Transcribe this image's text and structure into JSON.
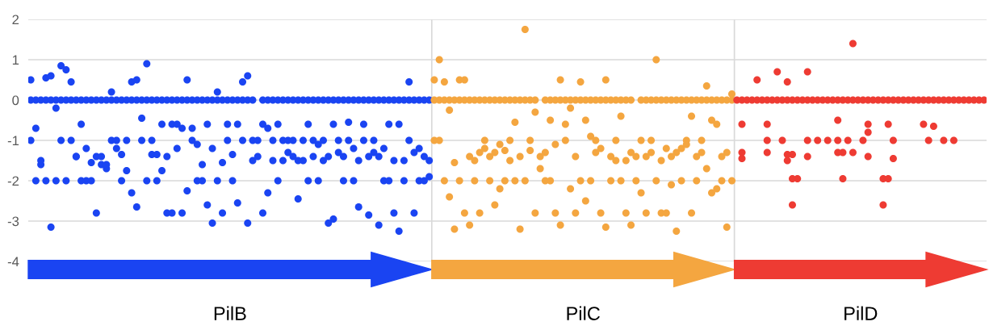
{
  "chart_data": {
    "type": "scatter",
    "annotations": [
      "PilB",
      "PilC",
      "PilD"
    ],
    "categories": [
      null,
      null,
      null,
      null,
      null,
      null,
      null,
      null,
      null,
      null,
      null,
      null,
      null,
      null,
      null,
      null,
      null,
      null,
      null,
      null,
      null,
      null,
      null,
      null,
      null,
      null,
      null,
      null,
      null,
      null,
      null,
      null,
      null,
      null,
      null,
      null,
      null,
      null,
      null,
      null,
      null,
      null,
      null,
      null,
      null,
      null,
      null,
      null,
      null,
      null,
      null,
      null,
      null,
      null,
      null,
      null,
      null,
      null,
      null,
      null,
      null,
      null,
      null,
      null,
      null,
      null,
      null,
      null,
      null,
      null,
      null,
      null,
      null,
      null,
      null,
      null,
      null,
      null,
      null,
      null,
      null,
      null,
      null,
      null,
      null,
      null,
      null,
      null,
      null,
      null,
      null,
      null,
      null,
      null,
      null,
      null,
      null,
      null,
      null,
      null,
      null,
      null,
      null,
      null,
      null,
      null,
      null,
      null,
      null,
      null,
      null,
      null,
      null,
      null,
      null,
      null,
      null,
      null,
      null,
      null,
      null,
      null,
      null,
      null,
      null,
      null,
      null,
      null,
      null,
      null,
      null,
      null,
      null,
      null,
      null,
      null,
      null,
      null,
      null,
      null,
      null,
      null,
      null,
      null,
      null,
      null,
      null,
      null,
      null,
      null,
      null,
      null,
      null,
      null,
      null,
      null,
      null,
      null,
      null,
      null,
      null,
      null,
      null,
      null,
      null,
      null,
      null,
      null,
      null,
      null,
      null,
      null,
      null,
      null,
      null,
      null,
      null,
      null,
      null,
      null,
      null,
      null,
      null,
      null,
      null,
      null,
      null,
      null,
      null,
      null
    ],
    "series": [
      {
        "color": "#1a44f2",
        "values": [
          0,
          0,
          0,
          0,
          0,
          0,
          0,
          0,
          0,
          0,
          0,
          0,
          0,
          0,
          0,
          0,
          0,
          0,
          0,
          0,
          0,
          0,
          0,
          0,
          0,
          0,
          0,
          0,
          0,
          0,
          0,
          0,
          0,
          0,
          0,
          0,
          0,
          0,
          0,
          0,
          0,
          0,
          0,
          0,
          0,
          null,
          0,
          0,
          0,
          0,
          0,
          0,
          0,
          0,
          0,
          0,
          0,
          0,
          0,
          0,
          0,
          0,
          0,
          0,
          0,
          0,
          0,
          0,
          0,
          0,
          0,
          0,
          0,
          0,
          0,
          0,
          0,
          0,
          0,
          0,
          null,
          null,
          null,
          null,
          null,
          null,
          null,
          null,
          null,
          null,
          null,
          null,
          null,
          null,
          null,
          null,
          null,
          null,
          null,
          null,
          null,
          null,
          null,
          null,
          null,
          null,
          null,
          null,
          null,
          null,
          null,
          null,
          null,
          null,
          null,
          null,
          null,
          null,
          null,
          null,
          null,
          null,
          null,
          null,
          null,
          null,
          null,
          null,
          null,
          null,
          null,
          null,
          null,
          null,
          null,
          null,
          null,
          null,
          null,
          null,
          null,
          null,
          null,
          null,
          null,
          null,
          null,
          null,
          null,
          null,
          null,
          null,
          null,
          null,
          null,
          null,
          null,
          null,
          null,
          null,
          null,
          null,
          null,
          null,
          null,
          null,
          null,
          null,
          null,
          null,
          null,
          null,
          null,
          null,
          null,
          null,
          null,
          null,
          null,
          null,
          null,
          null,
          null,
          null,
          null,
          null,
          null,
          null,
          null,
          null
        ]
      },
      {
        "color": "#1a44f2",
        "values": [
          0.5,
          -0.7,
          -1.6,
          0.55,
          0.6,
          -0.2,
          0.85,
          0.75,
          0.45,
          -1.4,
          -0.6,
          -1.2,
          -1.55,
          -1.4,
          -1.4,
          -1.7,
          0.2,
          -1.2,
          -1.35,
          -1.75,
          0.45,
          0.5,
          -0.45,
          0.9,
          -1.35,
          -1.35,
          -0.6,
          -1.4,
          -0.6,
          -0.6,
          -0.7,
          0.5,
          -0.7,
          -1.1,
          -1.6,
          -0.6,
          -1.2,
          0.2,
          -1.55,
          -0.6,
          -1.35,
          -0.6,
          0.45,
          0.6,
          -1.5,
          -1.4,
          -0.6,
          -0.7,
          -1.5,
          -0.6,
          -1.5,
          -1.3,
          -1.4,
          -1.5,
          -1.5,
          -0.6,
          -1.4,
          -1.1,
          -1.5,
          -1.4,
          -0.6,
          -1.3,
          -1.4,
          -0.55,
          -1.2,
          -1.5,
          -0.6,
          -1.4,
          -1.3,
          -1.4,
          -1.2,
          -0.6,
          -1.5,
          -0.6,
          -1.5,
          0.45,
          -1.3,
          -1.2,
          -1.4,
          -1.5,
          null,
          null,
          null,
          null,
          null,
          null,
          null,
          null,
          null,
          null,
          null,
          null,
          null,
          null,
          null,
          null,
          null,
          null,
          null,
          null,
          null,
          null,
          null,
          null,
          null,
          null,
          null,
          null,
          null,
          null,
          null,
          null,
          null,
          null,
          null,
          null,
          null,
          null,
          null,
          null,
          null,
          null,
          null,
          null,
          null,
          null,
          null,
          null,
          null,
          null,
          null,
          null,
          null,
          null,
          null,
          null,
          null,
          null,
          null,
          null,
          null,
          null,
          null,
          null,
          null,
          null,
          null,
          null,
          null,
          null,
          null,
          null,
          null,
          null,
          null,
          null,
          null,
          null,
          null,
          null,
          null,
          null,
          null,
          null,
          null,
          null,
          null,
          null,
          null,
          null,
          null,
          null,
          null,
          null,
          null,
          null,
          null,
          null,
          null,
          null,
          null,
          null,
          null,
          null,
          null,
          null,
          null,
          null,
          null,
          null
        ]
      },
      {
        "color": "#1a44f2",
        "values": [
          -1,
          -2,
          -1.5,
          -2,
          -3.15,
          -2,
          -1,
          -2,
          -1,
          -1.4,
          -2,
          -2,
          -2,
          -2.8,
          -1.6,
          -1.6,
          -1,
          -1,
          -2,
          -1,
          -2.3,
          -2.65,
          -1,
          -2,
          -1,
          -2,
          -1.75,
          -2.8,
          -2.8,
          -1.2,
          -2.8,
          -2.25,
          -1,
          -2,
          -2,
          -2.6,
          -3.05,
          -2,
          -2.8,
          -1,
          -2,
          -2.55,
          -1,
          -3.05,
          -1,
          -1,
          -2.8,
          -2.3,
          -1,
          -2,
          -1,
          -1,
          -1,
          -2.45,
          -1,
          -2,
          -1,
          -2,
          -1,
          -3.05,
          -2.95,
          -1,
          -2,
          -1,
          -2,
          -2.65,
          -1,
          -2.85,
          -1,
          -3.1,
          -2,
          -2,
          -2.8,
          -3.25,
          -2,
          -1,
          -2.8,
          -2,
          -2,
          -1.9,
          null,
          null,
          null,
          null,
          null,
          null,
          null,
          null,
          null,
          null,
          null,
          null,
          null,
          null,
          null,
          null,
          null,
          null,
          null,
          null,
          null,
          null,
          null,
          null,
          null,
          null,
          null,
          null,
          null,
          null,
          null,
          null,
          null,
          null,
          null,
          null,
          null,
          null,
          null,
          null,
          null,
          null,
          null,
          null,
          null,
          null,
          null,
          null,
          null,
          null,
          null,
          null,
          null,
          null,
          null,
          null,
          null,
          null,
          null,
          null,
          null,
          null,
          null,
          null,
          null,
          null,
          null,
          null,
          null,
          null,
          null,
          null,
          null,
          null,
          null,
          null,
          null,
          null,
          null,
          null,
          null,
          null,
          null,
          null,
          null,
          null,
          null,
          null,
          null,
          null,
          null,
          null,
          null,
          null,
          null,
          null,
          null,
          null,
          null,
          null,
          null,
          null,
          null,
          null,
          null,
          null,
          null,
          null,
          null,
          null
        ]
      },
      {
        "color": "#f4a640",
        "values": [
          null,
          null,
          null,
          null,
          null,
          null,
          null,
          null,
          null,
          null,
          null,
          null,
          null,
          null,
          null,
          null,
          null,
          null,
          null,
          null,
          null,
          null,
          null,
          null,
          null,
          null,
          null,
          null,
          null,
          null,
          null,
          null,
          null,
          null,
          null,
          null,
          null,
          null,
          null,
          null,
          null,
          null,
          null,
          null,
          null,
          null,
          null,
          null,
          null,
          null,
          null,
          null,
          null,
          null,
          null,
          null,
          null,
          null,
          null,
          null,
          null,
          null,
          null,
          null,
          null,
          null,
          null,
          null,
          null,
          null,
          null,
          null,
          null,
          null,
          null,
          null,
          null,
          null,
          null,
          null,
          0,
          0,
          0,
          0,
          0,
          0,
          0,
          0,
          0,
          0,
          0,
          0,
          0,
          0,
          0,
          0,
          0,
          0,
          0,
          0,
          0,
          null,
          0,
          0,
          0,
          0,
          0,
          0,
          0,
          0,
          0,
          0,
          0,
          0,
          0,
          0,
          0,
          0,
          0,
          0,
          null,
          0,
          0,
          0,
          0,
          0,
          0,
          0,
          0,
          0,
          0,
          0,
          0,
          0,
          0,
          0,
          0,
          0,
          0,
          0,
          null,
          null,
          null,
          null,
          null,
          null,
          null,
          null,
          null,
          null,
          null,
          null,
          null,
          null,
          null,
          null,
          null,
          null,
          null,
          null,
          null,
          null,
          null,
          null,
          null,
          null,
          null,
          null,
          null,
          null,
          null,
          null,
          null,
          null,
          null,
          null,
          null,
          null,
          null,
          null,
          null,
          null,
          null,
          null,
          null,
          null,
          null,
          null,
          null,
          null
        ]
      },
      {
        "color": "#f4a640",
        "values": [
          null,
          null,
          null,
          null,
          null,
          null,
          null,
          null,
          null,
          null,
          null,
          null,
          null,
          null,
          null,
          null,
          null,
          null,
          null,
          null,
          null,
          null,
          null,
          null,
          null,
          null,
          null,
          null,
          null,
          null,
          null,
          null,
          null,
          null,
          null,
          null,
          null,
          null,
          null,
          null,
          null,
          null,
          null,
          null,
          null,
          null,
          null,
          null,
          null,
          null,
          null,
          null,
          null,
          null,
          null,
          null,
          null,
          null,
          null,
          null,
          null,
          null,
          null,
          null,
          null,
          null,
          null,
          null,
          null,
          null,
          null,
          null,
          null,
          null,
          null,
          null,
          null,
          null,
          null,
          null,
          0.5,
          1.0,
          0.45,
          -0.25,
          -1.55,
          0.5,
          0.5,
          -1.4,
          -1.5,
          -1.3,
          -1.2,
          -1.4,
          -1.3,
          -1.1,
          -1.25,
          -1.5,
          -0.55,
          -1.4,
          1.75,
          -1.25,
          -0.3,
          -1.4,
          -1.3,
          -0.5,
          -1.1,
          0.5,
          -0.6,
          -0.2,
          -1.4,
          0.45,
          -0.5,
          -0.9,
          -1.3,
          -1.2,
          0.5,
          -1.4,
          -1.5,
          -0.4,
          -1.5,
          -1.3,
          -1.4,
          -1.0,
          -1.4,
          -1.3,
          1.0,
          -1.5,
          -1.2,
          -1.4,
          -1.3,
          -1.2,
          -1.1,
          -0.4,
          -1.4,
          -1.3,
          0.35,
          -0.5,
          -0.6,
          -1.4,
          -1.3,
          0.15,
          null,
          null,
          null,
          null,
          null,
          null,
          null,
          null,
          null,
          null,
          null,
          null,
          null,
          null,
          null,
          null,
          null,
          null,
          null,
          null,
          null,
          null,
          null,
          null,
          null,
          null,
          null,
          null,
          null,
          null,
          null,
          null,
          null,
          null,
          null,
          null,
          null,
          null,
          null,
          null,
          null,
          null,
          null,
          null,
          null,
          null,
          null,
          null,
          null,
          null
        ]
      },
      {
        "color": "#f4a640",
        "values": [
          null,
          null,
          null,
          null,
          null,
          null,
          null,
          null,
          null,
          null,
          null,
          null,
          null,
          null,
          null,
          null,
          null,
          null,
          null,
          null,
          null,
          null,
          null,
          null,
          null,
          null,
          null,
          null,
          null,
          null,
          null,
          null,
          null,
          null,
          null,
          null,
          null,
          null,
          null,
          null,
          null,
          null,
          null,
          null,
          null,
          null,
          null,
          null,
          null,
          null,
          null,
          null,
          null,
          null,
          null,
          null,
          null,
          null,
          null,
          null,
          null,
          null,
          null,
          null,
          null,
          null,
          null,
          null,
          null,
          null,
          null,
          null,
          null,
          null,
          null,
          null,
          null,
          null,
          null,
          null,
          -1,
          -1,
          -2,
          -2.4,
          -3.2,
          -2,
          -2.8,
          -3.1,
          -2,
          -2.8,
          -1,
          -2,
          -2.6,
          -2.2,
          -2,
          -1,
          -2,
          -3.2,
          -2,
          -1,
          -2.8,
          -1.7,
          -2,
          -2,
          -2.8,
          -3.1,
          -1,
          -2.2,
          -2.8,
          -2,
          -2.5,
          -2,
          -1,
          -2.8,
          -3.15,
          -2,
          -1,
          -2,
          -2.8,
          -3.1,
          -2,
          -2.3,
          -2.8,
          -1,
          -2,
          -2.8,
          -2.8,
          -2.1,
          -3.25,
          -2,
          -1,
          -2.8,
          -2,
          -1,
          -1.7,
          -2.3,
          -2.2,
          -2,
          -3.15,
          -2,
          null,
          null,
          null,
          null,
          null,
          null,
          null,
          null,
          null,
          null,
          null,
          null,
          null,
          null,
          null,
          null,
          null,
          null,
          null,
          null,
          null,
          null,
          null,
          null,
          null,
          null,
          null,
          null,
          null,
          null,
          null,
          null,
          null,
          null,
          null,
          null,
          null,
          null,
          null,
          null,
          null,
          null,
          null,
          null,
          null,
          null,
          null,
          null,
          null,
          null
        ]
      },
      {
        "color": "#ee3b33",
        "values": [
          null,
          null,
          null,
          null,
          null,
          null,
          null,
          null,
          null,
          null,
          null,
          null,
          null,
          null,
          null,
          null,
          null,
          null,
          null,
          null,
          null,
          null,
          null,
          null,
          null,
          null,
          null,
          null,
          null,
          null,
          null,
          null,
          null,
          null,
          null,
          null,
          null,
          null,
          null,
          null,
          null,
          null,
          null,
          null,
          null,
          null,
          null,
          null,
          null,
          null,
          null,
          null,
          null,
          null,
          null,
          null,
          null,
          null,
          null,
          null,
          null,
          null,
          null,
          null,
          null,
          null,
          null,
          null,
          null,
          null,
          null,
          null,
          null,
          null,
          null,
          null,
          null,
          null,
          null,
          null,
          null,
          null,
          null,
          null,
          null,
          null,
          null,
          null,
          null,
          null,
          null,
          null,
          null,
          null,
          null,
          null,
          null,
          null,
          null,
          null,
          null,
          null,
          null,
          null,
          null,
          null,
          null,
          null,
          null,
          null,
          null,
          null,
          null,
          null,
          null,
          null,
          null,
          null,
          null,
          null,
          null,
          null,
          null,
          null,
          null,
          null,
          null,
          null,
          null,
          null,
          null,
          null,
          null,
          null,
          null,
          null,
          null,
          null,
          null,
          null,
          0,
          0,
          0,
          0,
          0,
          0,
          0,
          0,
          0,
          0,
          0,
          0,
          0,
          0,
          0,
          0,
          0,
          0,
          0,
          0,
          0,
          0,
          0,
          0,
          0,
          0,
          0,
          0,
          0,
          0,
          0,
          0,
          0,
          0,
          0,
          0,
          0,
          0,
          0,
          0,
          0,
          0,
          0,
          0,
          0,
          0,
          0,
          0,
          0,
          0
        ]
      },
      {
        "color": "#ee3b33",
        "values": [
          null,
          null,
          null,
          null,
          null,
          null,
          null,
          null,
          null,
          null,
          null,
          null,
          null,
          null,
          null,
          null,
          null,
          null,
          null,
          null,
          null,
          null,
          null,
          null,
          null,
          null,
          null,
          null,
          null,
          null,
          null,
          null,
          null,
          null,
          null,
          null,
          null,
          null,
          null,
          null,
          null,
          null,
          null,
          null,
          null,
          null,
          null,
          null,
          null,
          null,
          null,
          null,
          null,
          null,
          null,
          null,
          null,
          null,
          null,
          null,
          null,
          null,
          null,
          null,
          null,
          null,
          null,
          null,
          null,
          null,
          null,
          null,
          null,
          null,
          null,
          null,
          null,
          null,
          null,
          null,
          null,
          null,
          null,
          null,
          null,
          null,
          null,
          null,
          null,
          null,
          null,
          null,
          null,
          null,
          null,
          null,
          null,
          null,
          null,
          null,
          null,
          null,
          null,
          null,
          null,
          null,
          null,
          null,
          null,
          null,
          null,
          null,
          null,
          null,
          null,
          null,
          null,
          null,
          null,
          null,
          null,
          null,
          null,
          null,
          null,
          null,
          null,
          null,
          null,
          null,
          null,
          null,
          null,
          null,
          null,
          null,
          null,
          null,
          null,
          null,
          null,
          -0.6,
          null,
          null,
          0.5,
          null,
          -0.6,
          null,
          0.7,
          -1.0,
          0.45,
          -1.35,
          -1.95,
          null,
          0.7,
          null,
          -1.0,
          null,
          -1.0,
          null,
          -0.5,
          -1.3,
          -1.0,
          1.4,
          null,
          -1.0,
          -0.6,
          null,
          null,
          -1.95,
          -0.6,
          -1.0,
          null,
          null,
          null,
          null,
          null,
          -0.6,
          -1.0,
          -0.65,
          null,
          -1.0,
          null,
          -1.0,
          null,
          null,
          null,
          null,
          null,
          null
        ]
      },
      {
        "color": "#ee3b33",
        "values": [
          null,
          null,
          null,
          null,
          null,
          null,
          null,
          null,
          null,
          null,
          null,
          null,
          null,
          null,
          null,
          null,
          null,
          null,
          null,
          null,
          null,
          null,
          null,
          null,
          null,
          null,
          null,
          null,
          null,
          null,
          null,
          null,
          null,
          null,
          null,
          null,
          null,
          null,
          null,
          null,
          null,
          null,
          null,
          null,
          null,
          null,
          null,
          null,
          null,
          null,
          null,
          null,
          null,
          null,
          null,
          null,
          null,
          null,
          null,
          null,
          null,
          null,
          null,
          null,
          null,
          null,
          null,
          null,
          null,
          null,
          null,
          null,
          null,
          null,
          null,
          null,
          null,
          null,
          null,
          null,
          null,
          null,
          null,
          null,
          null,
          null,
          null,
          null,
          null,
          null,
          null,
          null,
          null,
          null,
          null,
          null,
          null,
          null,
          null,
          null,
          null,
          null,
          null,
          null,
          null,
          null,
          null,
          null,
          null,
          null,
          null,
          null,
          null,
          null,
          null,
          null,
          null,
          null,
          null,
          null,
          null,
          null,
          null,
          null,
          null,
          null,
          null,
          null,
          null,
          null,
          null,
          null,
          null,
          null,
          null,
          null,
          null,
          null,
          null,
          null,
          null,
          -1.3,
          null,
          null,
          null,
          null,
          -1.3,
          null,
          null,
          null,
          -1.5,
          -2.6,
          null,
          null,
          -1.0,
          null,
          null,
          null,
          null,
          null,
          -1.0,
          -1.95,
          null,
          -1.3,
          null,
          null,
          -0.8,
          null,
          null,
          -2.6,
          -1.95,
          -1.45,
          null,
          null,
          null,
          null,
          null,
          null,
          null,
          null,
          null,
          null,
          null,
          null,
          null,
          null,
          null,
          null,
          null,
          null
        ]
      },
      {
        "color": "#ee3b33",
        "values": [
          null,
          null,
          null,
          null,
          null,
          null,
          null,
          null,
          null,
          null,
          null,
          null,
          null,
          null,
          null,
          null,
          null,
          null,
          null,
          null,
          null,
          null,
          null,
          null,
          null,
          null,
          null,
          null,
          null,
          null,
          null,
          null,
          null,
          null,
          null,
          null,
          null,
          null,
          null,
          null,
          null,
          null,
          null,
          null,
          null,
          null,
          null,
          null,
          null,
          null,
          null,
          null,
          null,
          null,
          null,
          null,
          null,
          null,
          null,
          null,
          null,
          null,
          null,
          null,
          null,
          null,
          null,
          null,
          null,
          null,
          null,
          null,
          null,
          null,
          null,
          null,
          null,
          null,
          null,
          null,
          null,
          null,
          null,
          null,
          null,
          null,
          null,
          null,
          null,
          null,
          null,
          null,
          null,
          null,
          null,
          null,
          null,
          null,
          null,
          null,
          null,
          null,
          null,
          null,
          null,
          null,
          null,
          null,
          null,
          null,
          null,
          null,
          null,
          null,
          null,
          null,
          null,
          null,
          null,
          null,
          null,
          null,
          null,
          null,
          null,
          null,
          null,
          null,
          null,
          null,
          null,
          null,
          null,
          null,
          null,
          null,
          null,
          null,
          null,
          null,
          null,
          -1.45,
          null,
          null,
          null,
          null,
          -1.0,
          null,
          null,
          null,
          -1.35,
          -1.95,
          null,
          null,
          -1.4,
          null,
          null,
          null,
          null,
          null,
          -1.3,
          null,
          null,
          null,
          null,
          null,
          -1.4,
          null,
          null,
          null,
          null,
          null,
          null,
          null,
          null,
          null,
          null,
          null,
          null,
          null,
          null,
          null,
          null,
          null,
          null,
          null,
          null,
          null,
          null,
          null
        ]
      }
    ],
    "ylim": [
      -4,
      2
    ],
    "yticks": [
      -4,
      -3,
      -2,
      -1,
      0,
      1,
      2
    ],
    "grid": "y",
    "marker": "circle"
  }
}
